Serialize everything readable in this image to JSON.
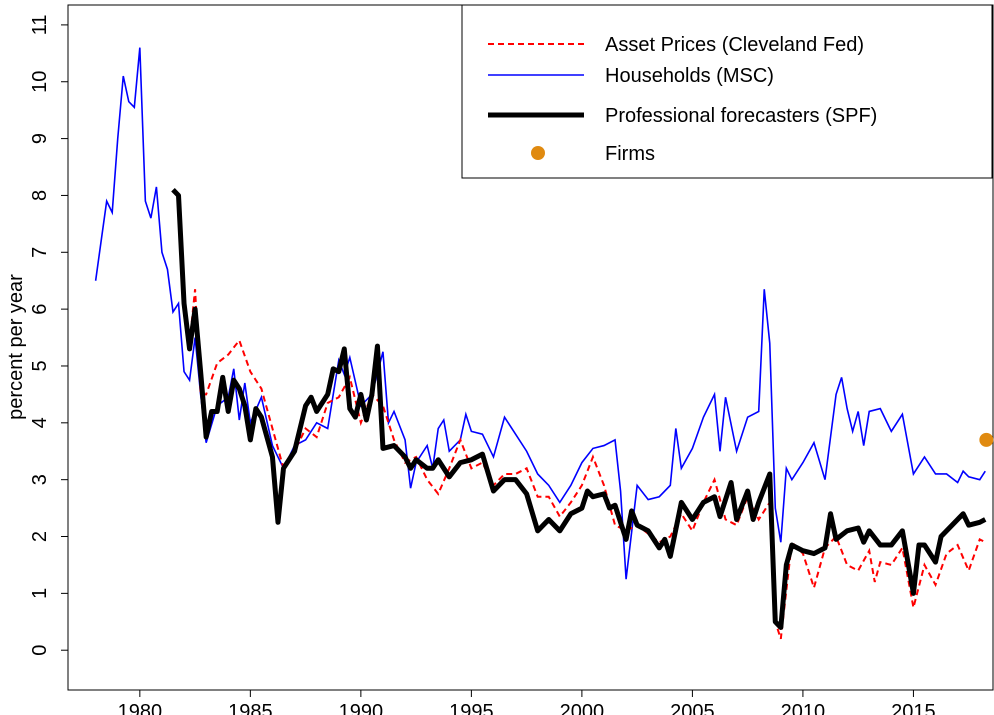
{
  "chart_data": {
    "type": "line",
    "y_label": "percent per year",
    "xlim": [
      1976.75,
      2018.6
    ],
    "ylim": [
      -0.7,
      11.35
    ],
    "xticks": [
      1980,
      1985,
      1990,
      1995,
      2000,
      2005,
      2010,
      2015
    ],
    "yticks": [
      0,
      1,
      2,
      3,
      4,
      5,
      6,
      7,
      8,
      9,
      10,
      11
    ],
    "legend": "upper right",
    "series": [
      {
        "name": "Asset Prices (Cleveland Fed)",
        "color": "#ff0000",
        "style": "dashed",
        "x": [
          1982.0,
          1982.25,
          1982.5,
          1982.75,
          1983.0,
          1983.5,
          1984.0,
          1984.5,
          1985.0,
          1985.5,
          1986.0,
          1986.5,
          1987.0,
          1987.5,
          1988.0,
          1988.5,
          1989.0,
          1989.5,
          1990.0,
          1990.5,
          1991.0,
          1991.5,
          1992.0,
          1992.5,
          1993.0,
          1993.5,
          1994.0,
          1994.5,
          1995.0,
          1995.5,
          1996.0,
          1996.5,
          1997.0,
          1997.5,
          1998.0,
          1998.5,
          1999.0,
          1999.5,
          2000.0,
          2000.5,
          2001.0,
          2001.5,
          2002.0,
          2002.5,
          2003.0,
          2003.5,
          2004.0,
          2004.5,
          2005.0,
          2005.5,
          2006.0,
          2006.5,
          2007.0,
          2007.5,
          2008.0,
          2008.5,
          2008.75,
          2009.0,
          2009.5,
          2010.0,
          2010.5,
          2011.0,
          2011.5,
          2012.0,
          2012.5,
          2013.0,
          2013.25,
          2013.5,
          2014.0,
          2014.5,
          2015.0,
          2015.5,
          2016.0,
          2016.5,
          2017.0,
          2017.5,
          2018.0,
          2018.25
        ],
        "values": [
          5.9,
          5.4,
          6.35,
          4.5,
          4.5,
          5.05,
          5.2,
          5.45,
          4.9,
          4.6,
          3.9,
          3.2,
          3.5,
          3.9,
          3.75,
          4.35,
          4.45,
          4.8,
          4.0,
          4.5,
          4.3,
          3.7,
          3.3,
          3.4,
          3.0,
          2.75,
          3.2,
          3.7,
          3.2,
          3.3,
          2.9,
          3.1,
          3.1,
          3.2,
          2.7,
          2.7,
          2.35,
          2.6,
          2.9,
          3.4,
          2.9,
          2.2,
          2.1,
          2.2,
          2.05,
          1.9,
          2.0,
          2.4,
          2.1,
          2.6,
          3.0,
          2.3,
          2.2,
          2.7,
          2.3,
          2.6,
          0.5,
          0.2,
          1.9,
          1.7,
          1.1,
          1.8,
          2.0,
          1.5,
          1.4,
          1.75,
          1.2,
          1.55,
          1.5,
          1.8,
          0.75,
          1.5,
          1.15,
          1.7,
          1.85,
          1.4,
          1.95,
          1.9
        ]
      },
      {
        "name": "Households (MSC)",
        "color": "#0000ff",
        "style": "solid",
        "x": [
          1978.0,
          1978.25,
          1978.5,
          1978.75,
          1979.0,
          1979.25,
          1979.5,
          1979.75,
          1980.0,
          1980.25,
          1980.5,
          1980.75,
          1981.0,
          1981.25,
          1981.5,
          1981.75,
          1982.0,
          1982.25,
          1982.5,
          1982.75,
          1983.0,
          1983.5,
          1984.0,
          1984.25,
          1984.5,
          1984.75,
          1985.0,
          1985.5,
          1986.0,
          1986.5,
          1987.0,
          1987.5,
          1988.0,
          1988.5,
          1989.0,
          1989.25,
          1989.5,
          1990.0,
          1990.5,
          1991.0,
          1991.25,
          1991.5,
          1992.0,
          1992.25,
          1992.5,
          1993.0,
          1993.25,
          1993.5,
          1993.75,
          1994.0,
          1994.5,
          1994.75,
          1995.0,
          1995.5,
          1996.0,
          1996.5,
          1997.0,
          1997.5,
          1998.0,
          1998.5,
          1999.0,
          1999.5,
          2000.0,
          2000.5,
          2001.0,
          2001.5,
          2001.75,
          2002.0,
          2002.5,
          2003.0,
          2003.5,
          2004.0,
          2004.25,
          2004.5,
          2005.0,
          2005.5,
          2006.0,
          2006.25,
          2006.5,
          2007.0,
          2007.5,
          2008.0,
          2008.25,
          2008.5,
          2008.75,
          2009.0,
          2009.25,
          2009.5,
          2010.0,
          2010.5,
          2011.0,
          2011.5,
          2011.75,
          2012.0,
          2012.25,
          2012.5,
          2012.75,
          2013.0,
          2013.5,
          2014.0,
          2014.5,
          2015.0,
          2015.5,
          2016.0,
          2016.5,
          2017.0,
          2017.25,
          2017.5,
          2018.0,
          2018.25
        ],
        "values": [
          6.5,
          7.2,
          7.9,
          7.7,
          9.0,
          10.1,
          9.65,
          9.55,
          10.6,
          7.9,
          7.6,
          8.15,
          7.0,
          6.7,
          5.95,
          6.1,
          4.9,
          4.75,
          5.5,
          4.5,
          3.65,
          4.3,
          4.45,
          4.95,
          4.05,
          4.7,
          4.0,
          4.45,
          3.6,
          3.2,
          3.6,
          3.7,
          4.0,
          3.9,
          5.1,
          4.85,
          5.15,
          4.3,
          4.5,
          5.25,
          4.0,
          4.2,
          3.7,
          2.85,
          3.3,
          3.6,
          3.2,
          3.9,
          4.05,
          3.5,
          3.7,
          4.15,
          3.85,
          3.8,
          3.4,
          4.1,
          3.8,
          3.5,
          3.1,
          2.9,
          2.6,
          2.9,
          3.3,
          3.55,
          3.6,
          3.7,
          2.8,
          1.25,
          2.9,
          2.65,
          2.7,
          2.9,
          3.9,
          3.2,
          3.55,
          4.1,
          4.5,
          3.5,
          4.45,
          3.5,
          4.1,
          4.2,
          6.35,
          5.4,
          2.5,
          1.9,
          3.2,
          3.0,
          3.3,
          3.65,
          3.0,
          4.5,
          4.8,
          4.25,
          3.85,
          4.2,
          3.6,
          4.2,
          4.25,
          3.85,
          4.15,
          3.1,
          3.4,
          3.1,
          3.1,
          2.95,
          3.15,
          3.05,
          3.0,
          3.15
        ]
      },
      {
        "name": "Professional forecasters (SPF)",
        "color": "#000000",
        "style": "thick",
        "x": [
          1981.5,
          1981.75,
          1982.0,
          1982.25,
          1982.5,
          1982.75,
          1983.0,
          1983.25,
          1983.5,
          1983.75,
          1984.0,
          1984.25,
          1984.5,
          1984.75,
          1985.0,
          1985.25,
          1985.5,
          1986.0,
          1986.25,
          1986.5,
          1987.0,
          1987.5,
          1987.75,
          1988.0,
          1988.5,
          1988.75,
          1989.0,
          1989.25,
          1989.5,
          1989.75,
          1990.0,
          1990.25,
          1990.5,
          1990.75,
          1991.0,
          1991.5,
          1992.0,
          1992.25,
          1992.5,
          1993.0,
          1993.25,
          1993.5,
          1994.0,
          1994.5,
          1995.0,
          1995.5,
          1996.0,
          1996.5,
          1997.0,
          1997.5,
          1998.0,
          1998.5,
          1999.0,
          1999.5,
          2000.0,
          2000.25,
          2000.5,
          2001.0,
          2001.25,
          2001.5,
          2002.0,
          2002.25,
          2002.5,
          2003.0,
          2003.5,
          2003.75,
          2004.0,
          2004.5,
          2005.0,
          2005.5,
          2006.0,
          2006.25,
          2006.75,
          2007.0,
          2007.5,
          2007.75,
          2008.0,
          2008.5,
          2008.75,
          2009.0,
          2009.25,
          2009.5,
          2010.0,
          2010.5,
          2011.0,
          2011.25,
          2011.5,
          2012.0,
          2012.5,
          2012.75,
          2013.0,
          2013.5,
          2014.0,
          2014.5,
          2015.0,
          2015.25,
          2015.5,
          2016.0,
          2016.25,
          2016.75,
          2017.25,
          2017.5,
          2018.0,
          2018.25
        ],
        "values": [
          8.1,
          8.0,
          6.1,
          5.3,
          6.0,
          4.9,
          3.75,
          4.2,
          4.2,
          4.8,
          4.2,
          4.75,
          4.6,
          4.3,
          3.7,
          4.25,
          4.1,
          3.4,
          2.25,
          3.2,
          3.5,
          4.3,
          4.45,
          4.2,
          4.5,
          4.95,
          4.9,
          5.3,
          4.25,
          4.1,
          4.5,
          4.05,
          4.5,
          5.35,
          3.55,
          3.6,
          3.4,
          3.2,
          3.35,
          3.2,
          3.2,
          3.35,
          3.05,
          3.3,
          3.35,
          3.45,
          2.8,
          3.0,
          3.0,
          2.75,
          2.1,
          2.3,
          2.1,
          2.4,
          2.5,
          2.8,
          2.7,
          2.75,
          2.5,
          2.55,
          1.95,
          2.45,
          2.2,
          2.1,
          1.8,
          1.95,
          1.65,
          2.6,
          2.3,
          2.6,
          2.7,
          2.35,
          2.95,
          2.3,
          2.8,
          2.3,
          2.6,
          3.1,
          0.5,
          0.4,
          1.5,
          1.85,
          1.75,
          1.7,
          1.8,
          2.4,
          1.95,
          2.1,
          2.15,
          1.9,
          2.1,
          1.85,
          1.85,
          2.1,
          1.0,
          1.85,
          1.85,
          1.55,
          2.0,
          2.2,
          2.4,
          2.2,
          2.25,
          2.3
        ]
      },
      {
        "name": "Firms",
        "color": "#e08a10",
        "style": "marker",
        "x": [
          2018.3
        ],
        "values": [
          3.7
        ]
      }
    ]
  }
}
